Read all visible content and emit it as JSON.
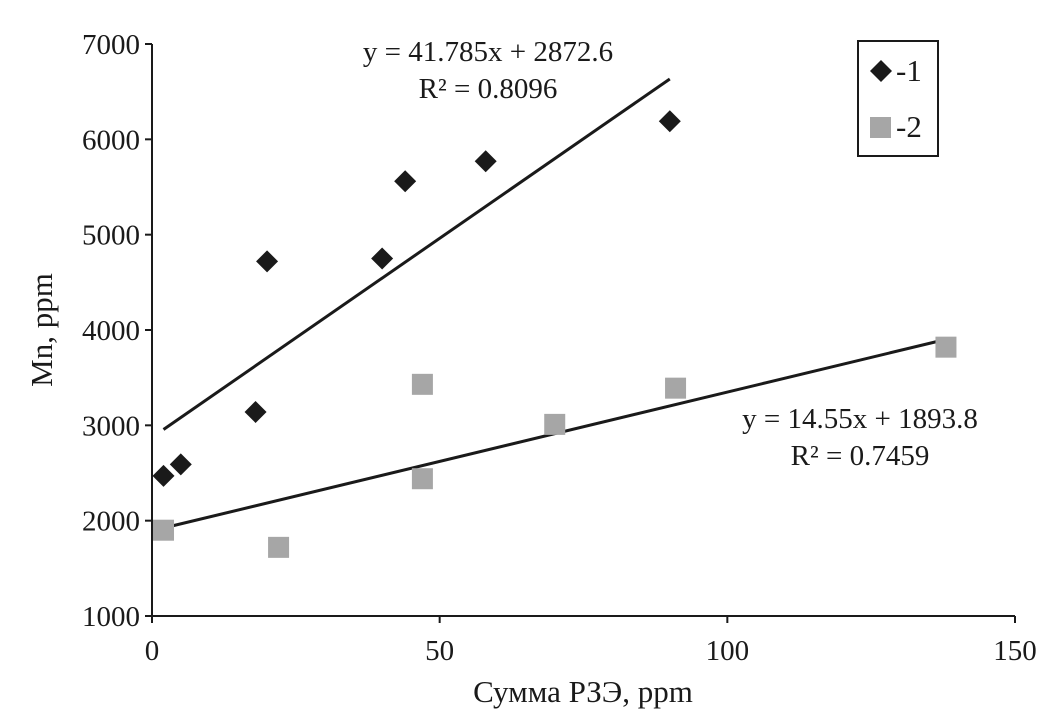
{
  "chart_data": {
    "type": "scatter",
    "title": "",
    "xlabel": "Сумма РЗЭ, ppm",
    "ylabel": "Mn, ppm",
    "xlim": [
      0,
      150
    ],
    "ylim": [
      1000,
      7000
    ],
    "x_ticks": [
      "0",
      "50",
      "100",
      "150"
    ],
    "y_ticks": [
      "1000",
      "2000",
      "3000",
      "4000",
      "5000",
      "6000",
      "7000"
    ],
    "grid": false,
    "legend_position": "top-right",
    "series": [
      {
        "name": "-1",
        "marker": "diamond",
        "color": "#1a1a1a",
        "points": [
          {
            "x": 2,
            "y": 2470
          },
          {
            "x": 5,
            "y": 2590
          },
          {
            "x": 18,
            "y": 3140
          },
          {
            "x": 20,
            "y": 4720
          },
          {
            "x": 40,
            "y": 4750
          },
          {
            "x": 44,
            "y": 5560
          },
          {
            "x": 58,
            "y": 5770
          },
          {
            "x": 90,
            "y": 6190
          }
        ],
        "trendline": {
          "equation": "y = 41.785x + 2872.6",
          "r2": "R² = 0.8096",
          "x_range": [
            2,
            90
          ]
        }
      },
      {
        "name": "-2",
        "marker": "square",
        "color": "#a6a6a6",
        "points": [
          {
            "x": 2,
            "y": 1900
          },
          {
            "x": 22,
            "y": 1720
          },
          {
            "x": 47,
            "y": 3430
          },
          {
            "x": 47,
            "y": 2440
          },
          {
            "x": 70,
            "y": 3010
          },
          {
            "x": 91,
            "y": 3390
          },
          {
            "x": 138,
            "y": 3820
          }
        ],
        "trendline": {
          "equation": "y = 14.55x + 1893.8",
          "r2": "R² = 0.7459",
          "x_range": [
            2,
            138
          ]
        }
      }
    ]
  }
}
